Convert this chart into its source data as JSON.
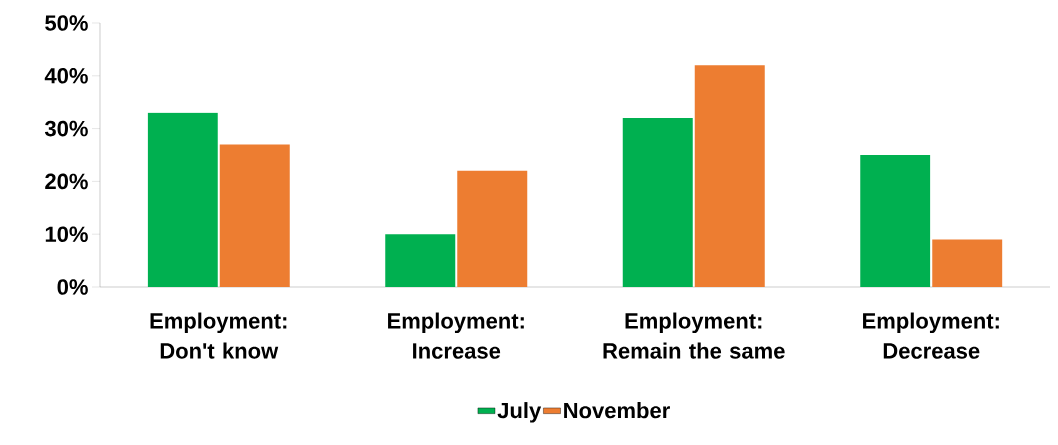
{
  "chart_data": {
    "type": "bar",
    "categories": [
      "Employment: Don't know",
      "Employment: Increase",
      "Employment: Remain the same",
      "Employment: Decrease"
    ],
    "series": [
      {
        "name": "July",
        "color": "#00b050",
        "values": [
          33,
          10,
          32,
          25
        ]
      },
      {
        "name": "November",
        "color": "#ed7d31",
        "values": [
          27,
          22,
          42,
          9
        ]
      }
    ],
    "ylim": [
      0,
      50
    ],
    "yticks": [
      {
        "value": 0,
        "label": "0%"
      },
      {
        "value": 10,
        "label": "10%"
      },
      {
        "value": 20,
        "label": "20%"
      },
      {
        "value": 30,
        "label": "30%"
      },
      {
        "value": 40,
        "label": "40%"
      },
      {
        "value": 50,
        "label": "50%"
      }
    ],
    "grid": false,
    "legend": "bottom"
  }
}
